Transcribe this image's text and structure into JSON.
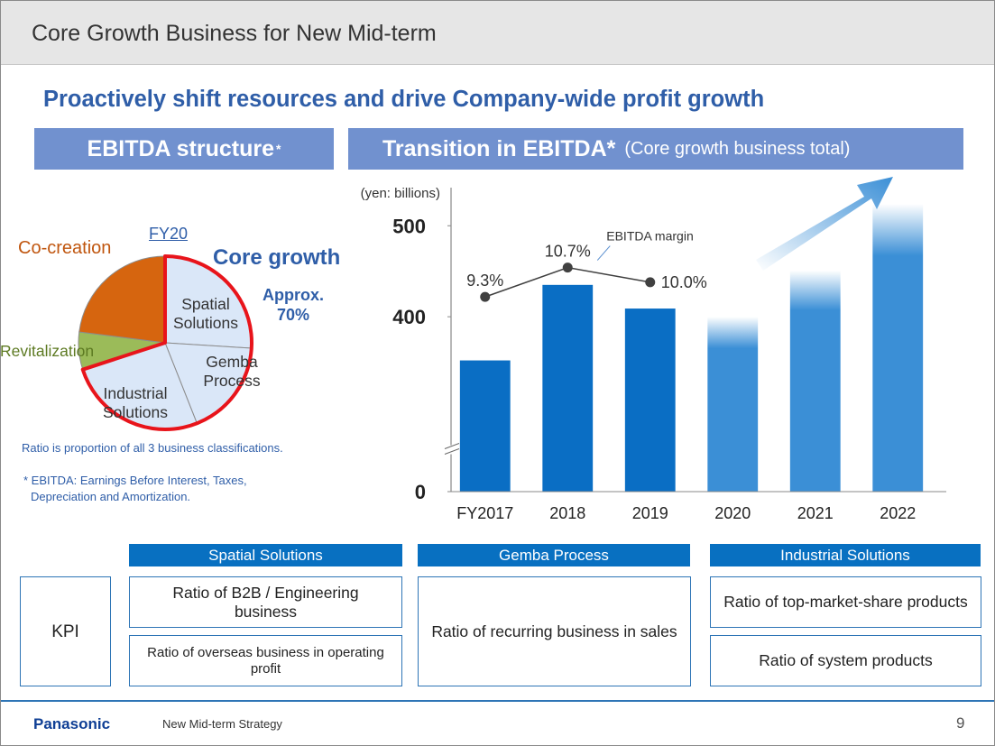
{
  "header": {
    "title": "Core Growth Business for New Mid-term"
  },
  "headline": "Proactively shift resources and drive Company-wide profit growth",
  "left_heading": {
    "title": "EBITDA structure",
    "mark": "*"
  },
  "chart_data": [
    {
      "type": "pie",
      "title": "FY20",
      "categories": [
        "Spatial Solutions",
        "Gemba Process",
        "Industrial Solutions",
        "Revitalization",
        "Co-creation"
      ],
      "values": [
        26,
        18,
        26,
        7,
        23
      ],
      "colors": [
        "#dae7f8",
        "#dae7f8",
        "#dae7f8",
        "#9bbb59",
        "#d6650f"
      ],
      "highlight_label": "Core growth",
      "highlight_annotation": "Approx. 70%",
      "highlight_color": "#e8141b",
      "note": "Ratio is proportion of all 3 business classifications."
    },
    {
      "type": "bar",
      "title": "Transition in EBITDA*",
      "subtitle": "(Core growth business total)",
      "y_label": "(yen: billions)",
      "categories": [
        "FY2017",
        "2018",
        "2019",
        "2020",
        "2021",
        "2022"
      ],
      "values": [
        352,
        435,
        409,
        400,
        451,
        524
      ],
      "colors": [
        "#0a6ec4",
        "#0a6ec4",
        "#0a6ec4",
        "#3b8fd6",
        "#3b8fd6",
        "#3b8fd6"
      ],
      "faded": [
        false,
        false,
        false,
        true,
        true,
        true
      ],
      "ylim": [
        0,
        530
      ],
      "yticks": [
        0,
        400,
        500
      ],
      "axis_break": [
        0,
        300
      ],
      "y2lim": [
        0,
        14
      ],
      "series": [
        {
          "name": "EBITDA margin",
          "type": "line",
          "axis": "y2",
          "color": "#404040",
          "values": [
            9.3,
            10.7,
            10.0,
            null,
            null,
            null
          ],
          "value_labels": [
            "9.3%",
            "10.7%",
            "10.0%",
            null,
            null,
            null
          ]
        }
      ]
    }
  ],
  "footnote": [
    "* EBITDA: Earnings Before Interest, Taxes,",
    "Depreciation and Amortization."
  ],
  "kpi": {
    "label": "KPI",
    "columns": [
      {
        "title": "Spatial Solutions",
        "items": [
          "Ratio of B2B / Engineering business",
          "Ratio of overseas business in operating profit"
        ]
      },
      {
        "title": "Gemba Process",
        "items": [
          "Ratio of recurring business in sales"
        ]
      },
      {
        "title": "Industrial Solutions",
        "items": [
          "Ratio of top-market-share products",
          "Ratio of system products"
        ]
      }
    ]
  },
  "footer": {
    "brand": "Panasonic",
    "text": "New Mid-term Strategy",
    "page": "9"
  }
}
